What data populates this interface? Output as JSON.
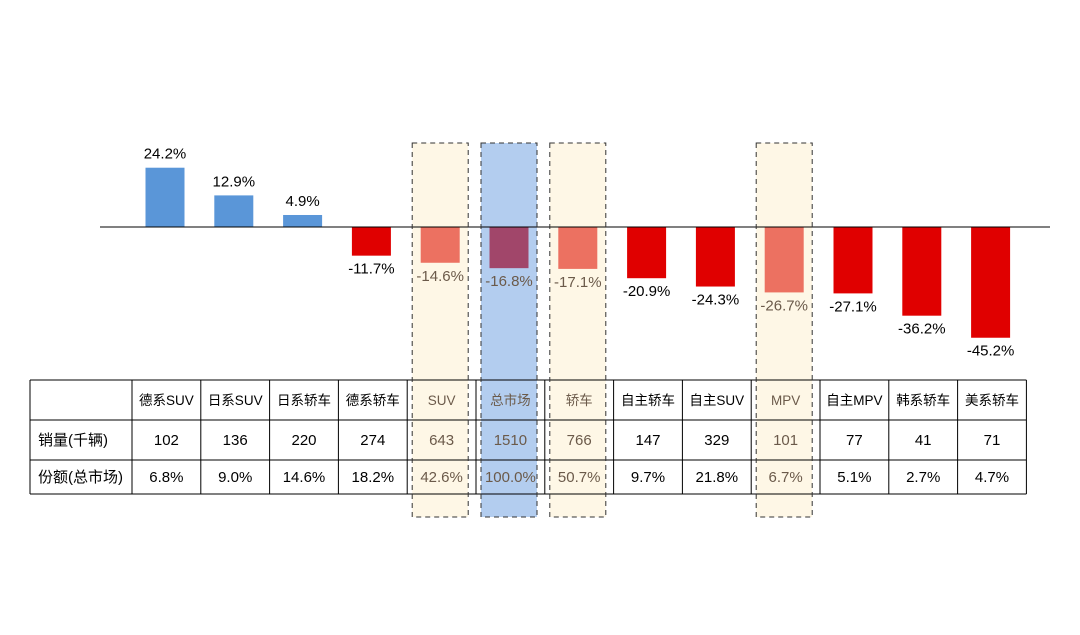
{
  "colors": {
    "positive": "#5a96d8",
    "negative_strong": "#e00000",
    "negative_light": "#ec7161",
    "total": "#a1466a",
    "highlight_fill": "#fef7e6",
    "total_highlight_fill": "#b3cdef"
  },
  "chart_data": {
    "type": "bar",
    "categories": [
      "德系SUV",
      "日系SUV",
      "日系轿车",
      "德系轿车",
      "SUV",
      "总市场",
      "轿车",
      "自主轿车",
      "自主SUV",
      "MPV",
      "自主MPV",
      "韩系轿车",
      "美系轿车"
    ],
    "values": [
      24.2,
      12.9,
      4.9,
      -11.7,
      -14.6,
      -16.8,
      -17.1,
      -20.9,
      -24.3,
      -26.7,
      -27.1,
      -36.2,
      -45.2
    ],
    "value_labels": [
      "24.2%",
      "12.9%",
      "4.9%",
      "-11.7%",
      "-14.6%",
      "-16.8%",
      "-17.1%",
      "-20.9%",
      "-24.3%",
      "-26.7%",
      "-27.1%",
      "-36.2%",
      "-45.2%"
    ],
    "highlighted": [
      "SUV",
      "轿车",
      "MPV"
    ],
    "total_category": "总市场",
    "ylim": [
      -50,
      50
    ],
    "title": "",
    "xlabel": "",
    "ylabel": ""
  },
  "table": {
    "rows": [
      {
        "label": "销量(千辆)",
        "values": [
          "102",
          "136",
          "220",
          "274",
          "643",
          "1510",
          "766",
          "147",
          "329",
          "101",
          "77",
          "41",
          "71"
        ]
      },
      {
        "label": "份额(总市场)",
        "values": [
          "6.8%",
          "9.0%",
          "14.6%",
          "18.2%",
          "42.6%",
          "100.0%",
          "50.7%",
          "9.7%",
          "21.8%",
          "6.7%",
          "5.1%",
          "2.7%",
          "4.7%"
        ]
      }
    ]
  }
}
